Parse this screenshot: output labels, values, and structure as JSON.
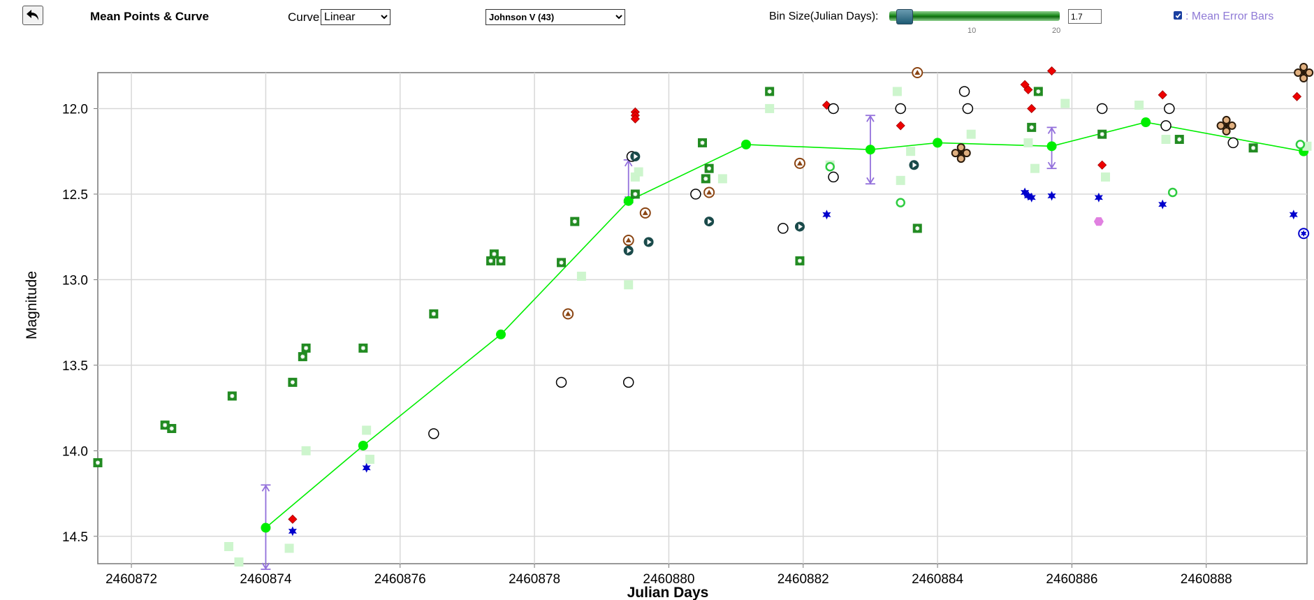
{
  "toolbar": {
    "back_icon": "back-arrow-icon",
    "title": "Mean Points & Curve",
    "curve_label": "Curve:",
    "curve_value": "Linear",
    "filter_value": "Johnson V (43)",
    "bin_label": "Bin Size(Julian Days):",
    "slider_ticks": [
      "10",
      "20"
    ],
    "bin_value": "1.7",
    "error_bars_label": ": Mean Error Bars",
    "error_bars_checked": true
  },
  "colors": {
    "mean_curve": "#00ee00",
    "error_bar": "#9370db",
    "green_box": "#228b22",
    "faint_box": "#cdf5cd",
    "red_diamond": "#ee0000",
    "blue_star": "#0000cc",
    "brown": "#8b4513",
    "dark_teal": "#1a4a4a",
    "pink_hex": "#e080e0"
  },
  "chart_data": {
    "type": "scatter",
    "xlabel": "Julian Days",
    "ylabel": "Magnitude",
    "xlim": [
      2460871.5,
      2460889.5
    ],
    "ylim": [
      14.66,
      11.79
    ],
    "y_inverted": true,
    "grid": true,
    "xticks": [
      "2460872",
      "2460874",
      "2460876",
      "2460878",
      "2460880",
      "2460882",
      "2460884",
      "2460886",
      "2460888"
    ],
    "yticks": [
      "12.0",
      "12.5",
      "13.0",
      "13.5",
      "14.0",
      "14.5"
    ],
    "mean_curve": {
      "x": [
        2460874.0,
        2460875.45,
        2460877.5,
        2460879.4,
        2460881.15,
        2460883.0,
        2460884.0,
        2460885.7,
        2460887.1,
        2460889.45
      ],
      "y": [
        14.45,
        13.97,
        13.32,
        12.54,
        12.21,
        12.24,
        12.2,
        12.22,
        12.08,
        12.25
      ]
    },
    "error_bars": [
      {
        "x": 2460874.0,
        "low": 14.2,
        "high": 14.7
      },
      {
        "x": 2460879.4,
        "low": 12.3,
        "high": 12.55
      },
      {
        "x": 2460883.0,
        "low": 12.04,
        "high": 12.44
      },
      {
        "x": 2460885.7,
        "low": 12.11,
        "high": 12.35
      }
    ],
    "series": [
      {
        "marker": "green-box",
        "x": [
          2460871.5,
          2460872.5,
          2460872.6,
          2460873.5,
          2460874.4,
          2460874.55,
          2460874.6,
          2460875.45,
          2460876.5,
          2460877.35,
          2460877.4,
          2460877.5,
          2460878.4,
          2460878.6,
          2460879.5,
          2460880.5,
          2460880.55,
          2460880.6,
          2460881.5,
          2460881.95,
          2460883.7,
          2460885.4,
          2460885.5,
          2460886.45,
          2460887.6,
          2460888.7
        ],
        "y": [
          14.07,
          13.85,
          13.87,
          13.68,
          13.6,
          13.45,
          13.4,
          13.4,
          13.2,
          12.89,
          12.85,
          12.89,
          12.9,
          12.66,
          12.5,
          12.2,
          12.41,
          12.35,
          11.9,
          12.89,
          12.7,
          12.11,
          11.9,
          12.15,
          12.18,
          12.23
        ]
      },
      {
        "marker": "faint-box",
        "x": [
          2460873.45,
          2460873.6,
          2460874.35,
          2460874.6,
          2460875.5,
          2460875.55,
          2460879.4,
          2460879.5,
          2460879.55,
          2460878.7,
          2460880.8,
          2460881.5,
          2460882.4,
          2460883.4,
          2460883.45,
          2460883.6,
          2460884.5,
          2460885.35,
          2460885.45,
          2460885.9,
          2460886.5,
          2460887.0,
          2460887.4,
          2460889.5
        ],
        "y": [
          14.56,
          14.65,
          14.57,
          14.0,
          13.88,
          14.05,
          13.03,
          12.4,
          12.37,
          12.98,
          12.41,
          12.0,
          12.33,
          11.9,
          12.42,
          12.25,
          12.15,
          12.2,
          12.35,
          11.97,
          12.4,
          11.98,
          12.18,
          12.22
        ]
      },
      {
        "marker": "red-diamond",
        "x": [
          2460874.4,
          2460879.5,
          2460879.5,
          2460879.5,
          2460882.35,
          2460883.45,
          2460885.3,
          2460885.35,
          2460885.4,
          2460885.7,
          2460886.45,
          2460887.35,
          2460889.35
        ],
        "y": [
          14.4,
          12.02,
          12.04,
          12.06,
          11.98,
          12.1,
          11.86,
          11.89,
          12.0,
          11.78,
          12.33,
          11.92,
          11.93
        ]
      },
      {
        "marker": "blue-star",
        "x": [
          2460874.4,
          2460875.5,
          2460882.35,
          2460885.3,
          2460885.35,
          2460885.4,
          2460885.7,
          2460886.4,
          2460887.35,
          2460889.3
        ],
        "y": [
          14.47,
          14.1,
          12.62,
          12.49,
          12.51,
          12.52,
          12.51,
          12.52,
          12.56,
          12.62
        ]
      },
      {
        "marker": "open-circle",
        "x": [
          2460876.5,
          2460878.4,
          2460879.4,
          2460879.45,
          2460880.4,
          2460881.7,
          2460882.45,
          2460882.45,
          2460883.45,
          2460884.4,
          2460884.45,
          2460886.45,
          2460887.4,
          2460887.45,
          2460888.4
        ],
        "y": [
          13.9,
          13.6,
          13.6,
          12.28,
          12.5,
          12.7,
          12.0,
          12.4,
          12.0,
          11.9,
          12.0,
          12.0,
          12.1,
          12.0,
          12.2
        ]
      },
      {
        "marker": "brown-triangle",
        "x": [
          2460878.5,
          2460879.4,
          2460879.65,
          2460880.6,
          2460881.95,
          2460883.7
        ],
        "y": [
          13.2,
          12.77,
          12.61,
          12.49,
          12.32,
          11.79
        ]
      },
      {
        "marker": "teal-play",
        "x": [
          2460879.4,
          2460879.5,
          2460879.7,
          2460880.6,
          2460881.95,
          2460883.65
        ],
        "y": [
          12.83,
          12.28,
          12.78,
          12.66,
          12.69,
          12.33
        ]
      },
      {
        "marker": "green-ring",
        "x": [
          2460882.4,
          2460883.45,
          2460887.5,
          2460889.4
        ],
        "y": [
          12.34,
          12.55,
          12.49,
          12.21
        ]
      },
      {
        "marker": "brown-cross",
        "x": [
          2460884.35,
          2460888.3,
          2460889.45
        ],
        "y": [
          12.26,
          12.1,
          11.79
        ]
      },
      {
        "marker": "pink-hexagon",
        "x": [
          2460886.4
        ],
        "y": [
          12.66
        ]
      },
      {
        "marker": "blue-ring-star",
        "x": [
          2460889.45
        ],
        "y": [
          12.73
        ]
      }
    ]
  }
}
